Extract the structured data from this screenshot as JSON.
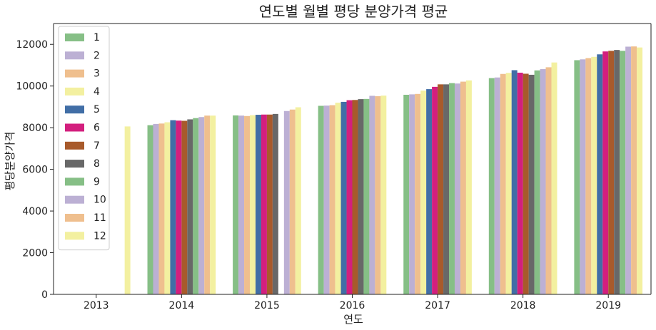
{
  "chart_data": {
    "type": "bar",
    "title": "연도별 월별 평당 분양가격 평균",
    "xlabel": "연도",
    "ylabel": "평당분양가격",
    "categories": [
      "2013",
      "2014",
      "2015",
      "2016",
      "2017",
      "2018",
      "2019"
    ],
    "ylim": [
      0,
      13000
    ],
    "yticks": [
      0,
      2000,
      4000,
      6000,
      8000,
      10000,
      12000
    ],
    "legend_position": "top-left",
    "grid": false,
    "series": [
      {
        "name": "1",
        "color": "#86bf86",
        "values": [
          null,
          8120,
          8590,
          9050,
          9580,
          10380,
          11240
        ]
      },
      {
        "name": "2",
        "color": "#bcb0d4",
        "values": [
          null,
          8180,
          8580,
          9060,
          9600,
          10410,
          11280
        ]
      },
      {
        "name": "3",
        "color": "#efbf8e",
        "values": [
          null,
          8200,
          8560,
          9080,
          9620,
          10580,
          11340
        ]
      },
      {
        "name": "4",
        "color": "#f3f0a0",
        "values": [
          null,
          8260,
          8600,
          9200,
          9780,
          10630,
          11400
        ]
      },
      {
        "name": "5",
        "color": "#416ea6",
        "values": [
          null,
          8360,
          8620,
          9240,
          9850,
          10760,
          11520
        ]
      },
      {
        "name": "6",
        "color": "#d31f7e",
        "values": [
          null,
          8340,
          8630,
          9320,
          9960,
          10640,
          11660
        ]
      },
      {
        "name": "7",
        "color": "#a85a2b",
        "values": [
          null,
          8330,
          8630,
          9330,
          10080,
          10590,
          11690
        ]
      },
      {
        "name": "8",
        "color": "#686868",
        "values": [
          null,
          8400,
          8660,
          9370,
          10080,
          10540,
          11730
        ]
      },
      {
        "name": "9",
        "color": "#86bf86",
        "values": [
          null,
          8460,
          null,
          9380,
          10140,
          10750,
          11690
        ]
      },
      {
        "name": "10",
        "color": "#bcb0d4",
        "values": [
          null,
          8510,
          8800,
          9530,
          10120,
          10810,
          11890
        ]
      },
      {
        "name": "11",
        "color": "#efbf8e",
        "values": [
          null,
          8580,
          8870,
          9510,
          10210,
          10900,
          11900
        ]
      },
      {
        "name": "12",
        "color": "#f3f0a0",
        "values": [
          8060,
          8580,
          8980,
          9540,
          10270,
          11130,
          11850
        ]
      }
    ]
  }
}
